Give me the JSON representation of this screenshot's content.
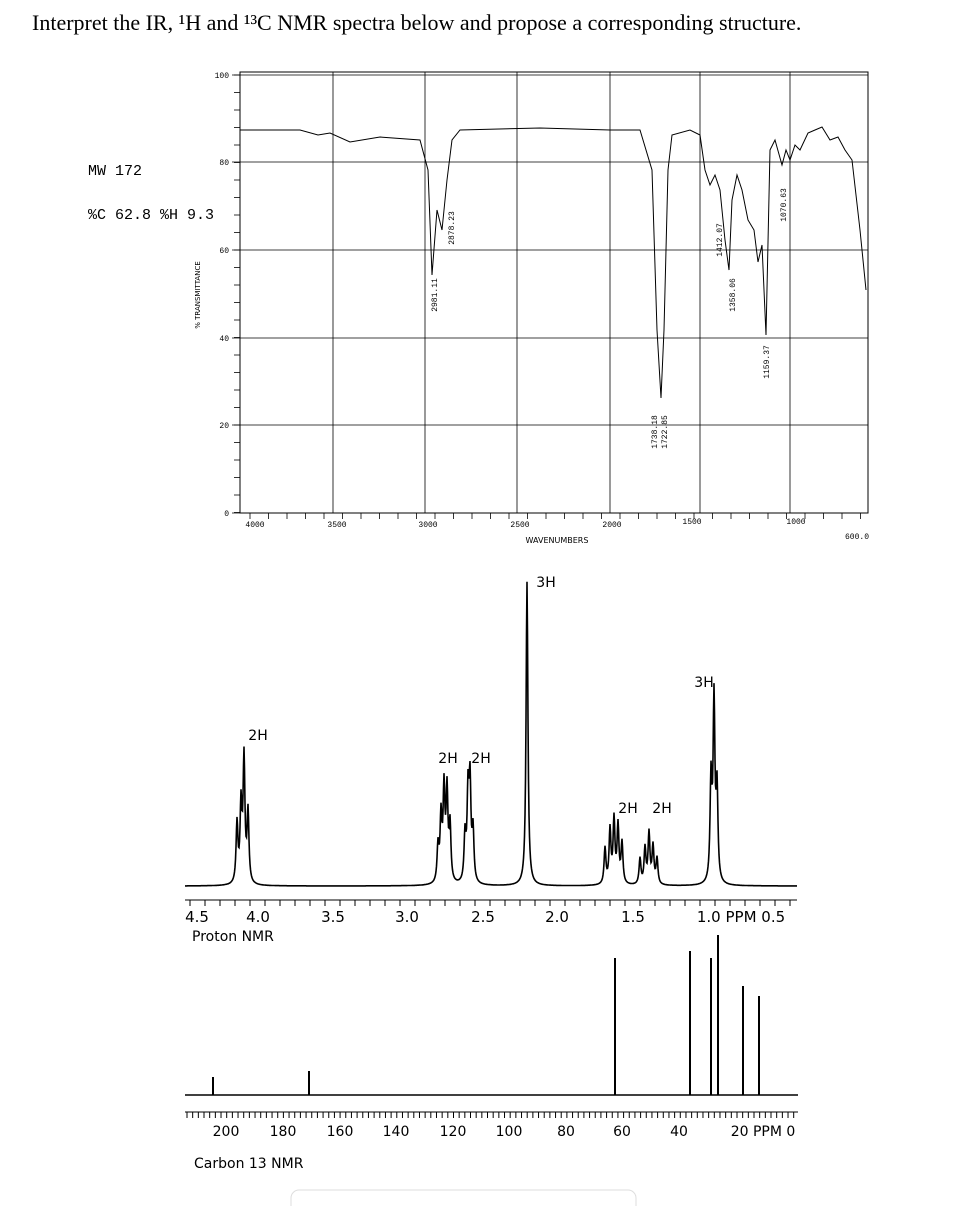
{
  "question": "Interpret the IR, ¹H and ¹³C NMR spectra below and propose a corresponding structure.",
  "ir": {
    "mw": "MW 172",
    "composition": "%C 62.8 %H 9.3",
    "y_axis_label": "% TRANSMITTANCE",
    "yticks": [
      "100",
      "80",
      "60",
      "40",
      "20",
      "0"
    ],
    "xticks": [
      "4000",
      "3500",
      "3000",
      "2500",
      "2000",
      "1500",
      "1000",
      "600.0"
    ],
    "x_axis_label": "WAVENUMBERS",
    "peaks": [
      "2981.11",
      "2878.23",
      "1738.18",
      "1722.85",
      "1412.07",
      "1358.06",
      "1159.37",
      "1070.63"
    ]
  },
  "proton": {
    "integrations": [
      "3H",
      "3H",
      "2H",
      "2H",
      "2H",
      "2H",
      "2H"
    ],
    "ticks": [
      "4.5",
      "4.0",
      "3.5",
      "3.0",
      "2.5",
      "2.0",
      "1.5",
      "1.0 PPM 0.5"
    ],
    "label": "Proton NMR"
  },
  "carbon": {
    "ticks": [
      "200",
      "180",
      "160",
      "140",
      "120",
      "100",
      "80",
      "60",
      "40",
      "20 PPM 0"
    ],
    "label": "Carbon 13 NMR"
  }
}
